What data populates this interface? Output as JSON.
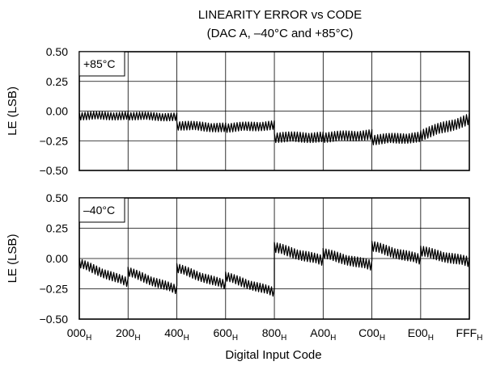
{
  "title": {
    "line1": "LINEARITY ERROR vs CODE",
    "line2": "(DAC A, –40°C and +85°C)"
  },
  "xlabel": "Digital Input Code",
  "chart_data": [
    {
      "type": "line",
      "name": "top-panel",
      "panel_label": "+85°C",
      "ylabel": "LE (LSB)",
      "ylim": [
        -0.5,
        0.5
      ],
      "yticks": [
        "0.50",
        "0.25",
        "0.00",
        "−0.25",
        "−0.50"
      ],
      "ytick_values": [
        0.5,
        0.25,
        0,
        -0.25,
        -0.5
      ],
      "grid": true,
      "x_unit": "hex code",
      "segments": [
        {
          "x_start": "000",
          "x_end": "200",
          "mean_start": -0.04,
          "mean_end": -0.04,
          "ripple": 0.035
        },
        {
          "x_start": "200",
          "x_end": "400",
          "mean_start": -0.04,
          "mean_end": -0.05,
          "ripple": 0.035
        },
        {
          "x_start": "400",
          "x_end": "600",
          "mean_start": -0.12,
          "mean_end": -0.14,
          "ripple": 0.04
        },
        {
          "x_start": "600",
          "x_end": "800",
          "mean_start": -0.14,
          "mean_end": -0.12,
          "ripple": 0.04
        },
        {
          "x_start": "800",
          "x_end": "A00",
          "mean_start": -0.22,
          "mean_end": -0.22,
          "ripple": 0.045
        },
        {
          "x_start": "A00",
          "x_end": "C00",
          "mean_start": -0.22,
          "mean_end": -0.2,
          "ripple": 0.045
        },
        {
          "x_start": "C00",
          "x_end": "E00",
          "mean_start": -0.24,
          "mean_end": -0.22,
          "ripple": 0.045
        },
        {
          "x_start": "E00",
          "x_end": "FFF",
          "mean_start": -0.2,
          "mean_end": -0.07,
          "ripple": 0.05
        }
      ]
    },
    {
      "type": "line",
      "name": "bottom-panel",
      "panel_label": "–40°C",
      "ylabel": "LE (LSB)",
      "ylim": [
        -0.5,
        0.5
      ],
      "yticks": [
        "0.50",
        "0.25",
        "0.00",
        "−0.25",
        "−0.50"
      ],
      "ytick_values": [
        0.5,
        0.25,
        0,
        -0.25,
        -0.5
      ],
      "grid": true,
      "x_unit": "hex code",
      "xticks": [
        {
          "base": "000",
          "sub": "H",
          "value": 0
        },
        {
          "base": "200",
          "sub": "H",
          "value": 512
        },
        {
          "base": "400",
          "sub": "H",
          "value": 1024
        },
        {
          "base": "600",
          "sub": "H",
          "value": 1536
        },
        {
          "base": "800",
          "sub": "H",
          "value": 2048
        },
        {
          "base": "A00",
          "sub": "H",
          "value": 2560
        },
        {
          "base": "C00",
          "sub": "H",
          "value": 3072
        },
        {
          "base": "E00",
          "sub": "H",
          "value": 3584
        },
        {
          "base": "FFF",
          "sub": "H",
          "value": 4095
        }
      ],
      "xlim": [
        0,
        4095
      ],
      "segments": [
        {
          "x_start": "000",
          "x_end": "200",
          "mean_start": -0.04,
          "mean_end": -0.2,
          "ripple": 0.04
        },
        {
          "x_start": "200",
          "x_end": "400",
          "mean_start": -0.11,
          "mean_end": -0.26,
          "ripple": 0.04
        },
        {
          "x_start": "400",
          "x_end": "600",
          "mean_start": -0.08,
          "mean_end": -0.22,
          "ripple": 0.04
        },
        {
          "x_start": "600",
          "x_end": "800",
          "mean_start": -0.15,
          "mean_end": -0.28,
          "ripple": 0.04
        },
        {
          "x_start": "800",
          "x_end": "A00",
          "mean_start": 0.09,
          "mean_end": -0.02,
          "ripple": 0.045
        },
        {
          "x_start": "A00",
          "x_end": "C00",
          "mean_start": 0.04,
          "mean_end": -0.06,
          "ripple": 0.045
        },
        {
          "x_start": "C00",
          "x_end": "E00",
          "mean_start": 0.1,
          "mean_end": -0.01,
          "ripple": 0.045
        },
        {
          "x_start": "E00",
          "x_end": "FFF",
          "mean_start": 0.06,
          "mean_end": -0.03,
          "ripple": 0.045
        }
      ]
    }
  ]
}
